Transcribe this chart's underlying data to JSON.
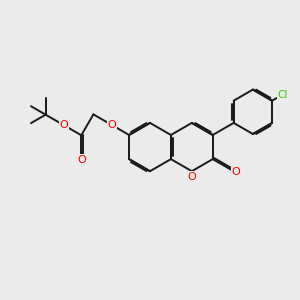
{
  "background_color": "#ebebeb",
  "bond_color": "#1a1a1a",
  "oxygen_color": "#ff0000",
  "chlorine_color": "#33cc00",
  "line_width": 1.4,
  "figsize": [
    3.0,
    3.0
  ],
  "dpi": 100,
  "xlim": [
    0,
    10
  ],
  "ylim": [
    0,
    10
  ]
}
